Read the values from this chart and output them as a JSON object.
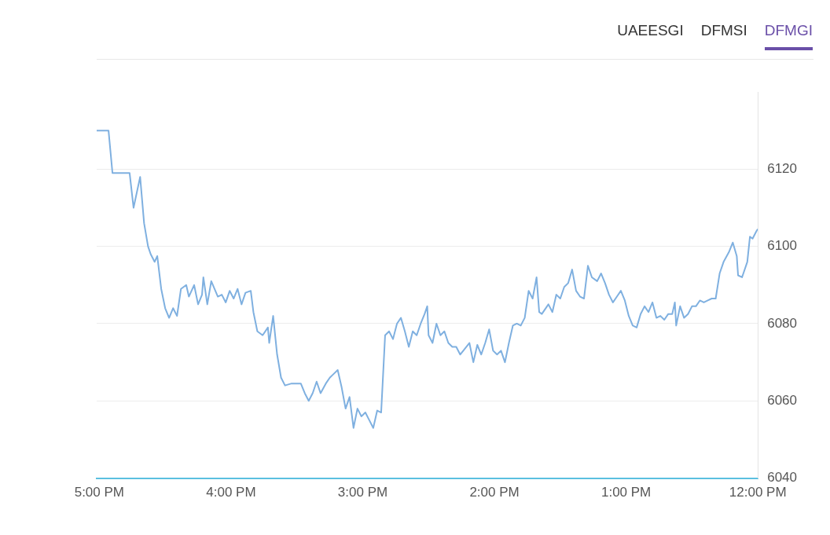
{
  "chart_data": {
    "type": "line",
    "annotations": [
      "UAEESGI",
      "DFMSI",
      "DFMGI"
    ],
    "x": [
      17.02,
      16.93,
      16.9,
      16.77,
      16.74,
      16.69,
      16.66,
      16.63,
      16.61,
      16.58,
      16.56,
      16.53,
      16.5,
      16.47,
      16.44,
      16.41,
      16.38,
      16.34,
      16.32,
      16.28,
      16.25,
      16.22,
      16.21,
      16.18,
      16.15,
      16.1,
      16.07,
      16.04,
      16.01,
      15.98,
      15.95,
      15.92,
      15.89,
      15.85,
      15.83,
      15.8,
      15.76,
      15.72,
      15.71,
      15.68,
      15.65,
      15.62,
      15.59,
      15.54,
      15.47,
      15.44,
      15.41,
      15.38,
      15.35,
      15.32,
      15.28,
      15.25,
      15.22,
      15.19,
      15.16,
      15.13,
      15.1,
      15.07,
      15.04,
      15.01,
      14.98,
      14.95,
      14.92,
      14.89,
      14.86,
      14.83,
      14.8,
      14.77,
      14.74,
      14.71,
      14.68,
      14.65,
      14.62,
      14.59,
      14.56,
      14.53,
      14.51,
      14.5,
      14.47,
      14.44,
      14.41,
      14.38,
      14.35,
      14.32,
      14.29,
      14.26,
      14.19,
      14.16,
      14.13,
      14.1,
      14.07,
      14.04,
      14.01,
      13.98,
      13.95,
      13.92,
      13.89,
      13.86,
      13.83,
      13.8,
      13.77,
      13.74,
      13.71,
      13.68,
      13.66,
      13.64,
      13.59,
      13.56,
      13.53,
      13.5,
      13.47,
      13.44,
      13.41,
      13.38,
      13.35,
      13.32,
      13.29,
      13.26,
      13.22,
      13.19,
      13.16,
      13.13,
      13.1,
      13.07,
      13.04,
      13.01,
      12.98,
      12.95,
      12.92,
      12.89,
      12.86,
      12.83,
      12.8,
      12.77,
      12.74,
      12.71,
      12.68,
      12.65,
      12.63,
      12.62,
      12.59,
      12.56,
      12.53,
      12.5,
      12.47,
      12.44,
      12.41,
      12.38,
      12.35,
      12.32,
      12.29,
      12.26,
      12.22,
      12.19,
      12.16,
      12.15,
      12.12,
      12.08,
      12.06,
      12.04,
      12.01,
      12.0
    ],
    "series": [
      {
        "color": "#7fb0e0",
        "values": [
          6130,
          6130,
          6119,
          6119,
          6110,
          6118,
          6106,
          6100,
          6098,
          6096,
          6097.5,
          6089,
          6084,
          6081.5,
          6084,
          6082,
          6089,
          6090,
          6087,
          6090,
          6085,
          6087.5,
          6092,
          6085,
          6091,
          6087,
          6087.5,
          6085.5,
          6088.5,
          6086.5,
          6089,
          6085,
          6088,
          6088.5,
          6083,
          6078,
          6077,
          6079,
          6075,
          6082,
          6072,
          6066,
          6064,
          6064.5,
          6064.5,
          6062,
          6060,
          6062,
          6065,
          6062,
          6064.5,
          6066,
          6067,
          6068,
          6063.5,
          6058,
          6061,
          6053,
          6058,
          6056,
          6057,
          6055,
          6053,
          6057.5,
          6057,
          6077,
          6078,
          6076,
          6080,
          6081.5,
          6078,
          6074,
          6078,
          6077,
          6080,
          6082.5,
          6084.5,
          6077,
          6075,
          6080,
          6077,
          6078,
          6075,
          6074,
          6074,
          6072,
          6075,
          6070,
          6074.5,
          6072,
          6075,
          6078.5,
          6073,
          6072,
          6073,
          6070,
          6075,
          6079.5,
          6080,
          6079.5,
          6081.5,
          6088.5,
          6086.5,
          6092,
          6083,
          6082.5,
          6085,
          6083,
          6087.5,
          6086.5,
          6089.5,
          6090.5,
          6094,
          6088.5,
          6087,
          6086.5,
          6095,
          6092,
          6091,
          6093,
          6090.5,
          6087.5,
          6085.5,
          6087,
          6088.5,
          6086,
          6082,
          6079.5,
          6079,
          6082.5,
          6084.5,
          6083,
          6085.5,
          6081.5,
          6082,
          6081,
          6082.5,
          6082.5,
          6085.5,
          6079.5,
          6084.5,
          6081.5,
          6082.5,
          6084.5,
          6084.5,
          6086,
          6085.5,
          6086,
          6086.5,
          6086.5,
          6093,
          6096,
          6098.5,
          6101,
          6097.5,
          6092.5,
          6092,
          6096,
          6102.5,
          6102,
          6104,
          6104.5
        ]
      }
    ],
    "xlim": [
      17.02,
      12
    ],
    "xticks": [
      {
        "value": 17,
        "label": "5:00 PM"
      },
      {
        "value": 16,
        "label": "4:00 PM"
      },
      {
        "value": 15,
        "label": "3:00 PM"
      },
      {
        "value": 14,
        "label": "2:00 PM"
      },
      {
        "value": 13,
        "label": "1:00 PM"
      },
      {
        "value": 12,
        "label": "12:00 PM"
      }
    ],
    "ylim": [
      6040,
      6140
    ],
    "yticks": [
      6040,
      6060,
      6080,
      6100,
      6120
    ],
    "grid": "y",
    "marker": "none",
    "line_style": "solid"
  }
}
